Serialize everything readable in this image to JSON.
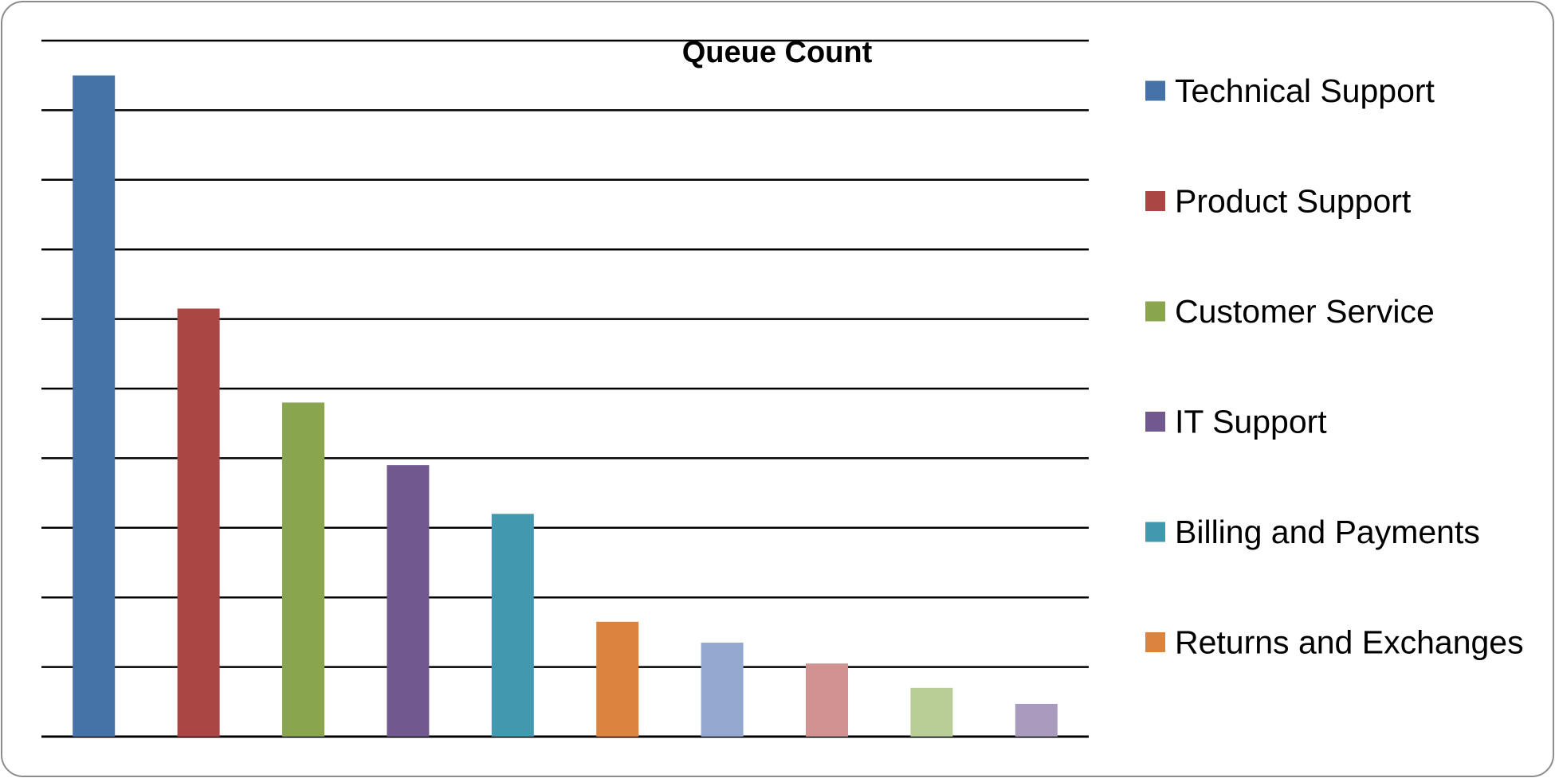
{
  "chart_data": {
    "type": "bar",
    "title": "Queue Count",
    "xlabel": "",
    "ylabel": "",
    "ylim": [
      0,
      100
    ],
    "grid": true,
    "legend_position": "right",
    "categories": [
      "Technical Support",
      "Product Support",
      "Customer Service",
      "IT Support",
      "Billing and Payments",
      "Returns and Exchanges",
      "",
      "",
      "",
      ""
    ],
    "values": [
      95,
      61.5,
      48,
      39,
      32,
      16.5,
      13.5,
      10.5,
      7,
      4.7
    ],
    "colors": [
      "#4572a7",
      "#aa4643",
      "#89a54e",
      "#71588f",
      "#4198af",
      "#db843d",
      "#93a9cf",
      "#d19392",
      "#b9cd96",
      "#a99bbd"
    ],
    "legend": [
      {
        "label": "Technical Support",
        "color": "#4572a7"
      },
      {
        "label": "Product Support",
        "color": "#aa4643"
      },
      {
        "label": "Customer Service",
        "color": "#89a54e"
      },
      {
        "label": "IT Support",
        "color": "#71588f"
      },
      {
        "label": "Billing and Payments",
        "color": "#4198af"
      },
      {
        "label": "Returns and Exchanges",
        "color": "#db843d"
      }
    ]
  }
}
